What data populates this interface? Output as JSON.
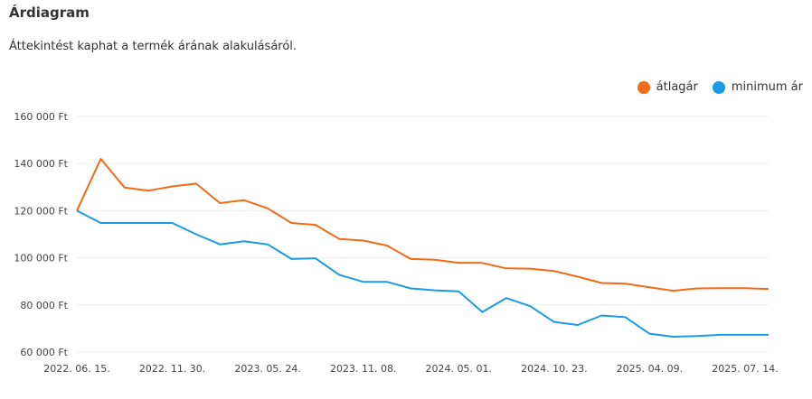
{
  "header": {
    "title": "Árdiagram",
    "description": "Áttekintést kaphat a termék árának alakulásáról."
  },
  "colors": {
    "average": "#f26a14",
    "minimum": "#1a9be6",
    "grid": "#eeeeee"
  },
  "chart_data": {
    "type": "line",
    "title": "",
    "xlabel": "",
    "ylabel": "",
    "ylim": [
      60000,
      160000
    ],
    "yticks": [
      60000,
      80000,
      100000,
      120000,
      140000,
      160000
    ],
    "ytick_labels": [
      "60 000 Ft",
      "80 000 Ft",
      "100 000 Ft",
      "120 000 Ft",
      "140 000 Ft",
      "160 000 Ft"
    ],
    "xtick_labels": [
      "2022. 06. 15.",
      "2022. 11. 30.",
      "2023. 05. 24.",
      "2023. 11. 08.",
      "2024. 05. 01.",
      "2024. 10. 23.",
      "2025. 04. 09.",
      "2025. 07. 14."
    ],
    "legend_position": "top-right",
    "grid": true,
    "series": [
      {
        "name": "átlagár",
        "color": "#f26a14",
        "values": [
          120000,
          142000,
          129800,
          128500,
          130300,
          131500,
          123200,
          124500,
          121000,
          114800,
          114000,
          108000,
          107300,
          105200,
          99500,
          99200,
          97900,
          97800,
          95500,
          95400,
          94400,
          92000,
          89300,
          89000,
          87500,
          86000,
          87000,
          87100,
          87100,
          86800
        ]
      },
      {
        "name": "minimum ár",
        "color": "#1a9be6",
        "values": [
          120000,
          114800,
          114800,
          114800,
          114800,
          110000,
          105700,
          107000,
          105700,
          99500,
          99800,
          92800,
          89800,
          89800,
          87000,
          86200,
          85800,
          77000,
          82900,
          79500,
          72800,
          71500,
          75500,
          74800,
          67800,
          66500,
          66800,
          67300,
          67300,
          67300
        ]
      }
    ]
  }
}
